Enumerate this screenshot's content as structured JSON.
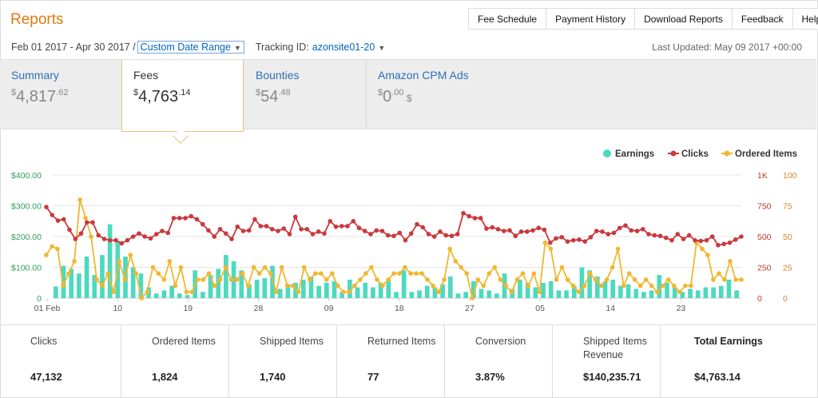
{
  "header": {
    "title": "Reports",
    "nav": [
      "Fee Schedule",
      "Payment History",
      "Download Reports",
      "Feedback",
      "Help"
    ]
  },
  "filters": {
    "date_range": "Feb 01 2017 - Apr 30 2017 /",
    "range_select": "Custom Date Range",
    "tracking_label": "Tracking ID:",
    "tracking_value": "azonsite01-20",
    "last_updated": "Last Updated: May 09 2017 +00:00"
  },
  "tabs": [
    {
      "label": "Summary",
      "currency": "$",
      "amount": "4,817",
      "cents": ".62",
      "suffix": ""
    },
    {
      "label": "Fees",
      "currency": "$",
      "amount": "4,763",
      "cents": ".14",
      "suffix": ""
    },
    {
      "label": "Bounties",
      "currency": "$",
      "amount": "54",
      "cents": ".48",
      "suffix": ""
    },
    {
      "label": "Amazon CPM Ads",
      "currency": "$",
      "amount": "0",
      "cents": ".00",
      "suffix": " $"
    }
  ],
  "colors": {
    "earnings": "#4dd9c0",
    "clicks": "#c9393d",
    "ordered_items": "#f0b72f",
    "left_axis": "#2e9e60",
    "right_axis": "#c0392b"
  },
  "chart_data": {
    "type": "line",
    "legend": [
      "Earnings",
      "Clicks",
      "Ordered Items"
    ],
    "legend_position": "top-right",
    "x_tick_labels": [
      "01 Feb",
      "10",
      "19",
      "28",
      "09",
      "18",
      "27",
      "05",
      "14",
      "23"
    ],
    "x_tick_days": [
      0,
      9,
      18,
      27,
      36,
      45,
      54,
      63,
      72,
      81
    ],
    "y_left": {
      "ticks": [
        "0",
        "$100.00",
        "$200.00",
        "$300.00",
        "$400.00"
      ],
      "lim": [
        0,
        400
      ]
    },
    "y_right_clicks": {
      "ticks": [
        "0",
        "250",
        "500",
        "750",
        "1K"
      ],
      "lim": [
        0,
        1000
      ]
    },
    "y_right_items": {
      "ticks": [
        "0",
        "25",
        "50",
        "75",
        "100"
      ],
      "lim": [
        0,
        100
      ]
    },
    "grid": true,
    "series": [
      {
        "name": "Earnings",
        "type": "bar",
        "values": [
          38,
          105,
          95,
          80,
          135,
          75,
          140,
          240,
          185,
          135,
          100,
          80,
          35,
          15,
          25,
          40,
          15,
          10,
          90,
          20,
          75,
          95,
          140,
          120,
          90,
          45,
          60,
          65,
          105,
          30,
          45,
          50,
          60,
          70,
          40,
          50,
          55,
          20,
          60,
          35,
          50,
          35,
          50,
          60,
          20,
          90,
          20,
          25,
          40,
          35,
          45,
          70,
          15,
          20,
          55,
          30,
          25,
          15,
          80,
          30,
          60,
          50,
          35,
          50,
          55,
          25,
          25,
          40,
          100,
          90,
          70,
          55,
          60,
          40,
          45,
          30,
          20,
          25,
          75,
          50,
          35,
          20,
          30,
          25,
          35,
          35,
          40,
          60,
          25
        ]
      },
      {
        "name": "Clicks",
        "type": "line",
        "values": [
          740,
          675,
          630,
          640,
          555,
          480,
          525,
          615,
          615,
          510,
          480,
          470,
          470,
          445,
          470,
          500,
          525,
          500,
          485,
          520,
          545,
          530,
          650,
          650,
          650,
          665,
          640,
          600,
          550,
          500,
          560,
          525,
          480,
          580,
          545,
          550,
          640,
          585,
          585,
          560,
          545,
          565,
          520,
          660,
          560,
          560,
          520,
          540,
          525,
          625,
          580,
          585,
          585,
          625,
          570,
          545,
          520,
          550,
          545,
          510,
          505,
          530,
          470,
          525,
          600,
          575,
          520,
          500,
          540,
          510,
          505,
          520,
          690,
          665,
          650,
          650,
          565,
          575,
          560,
          545,
          550,
          505,
          540,
          540,
          550,
          570,
          555,
          450,
          485,
          495,
          460,
          470,
          475,
          460,
          495,
          545,
          540,
          520,
          530,
          570,
          590,
          550,
          545,
          560,
          520,
          510,
          505,
          490,
          470,
          520,
          480,
          510,
          470,
          465,
          470,
          500,
          430,
          440,
          450,
          475,
          500
        ]
      },
      {
        "name": "Ordered Items",
        "type": "line",
        "values": [
          35,
          42,
          40,
          10,
          20,
          30,
          80,
          65,
          50,
          15,
          10,
          20,
          5,
          30,
          15,
          35,
          20,
          0,
          5,
          25,
          20,
          15,
          30,
          10,
          25,
          5,
          5,
          15,
          15,
          20,
          10,
          15,
          25,
          15,
          15,
          20,
          10,
          25,
          20,
          25,
          20,
          5,
          25,
          10,
          10,
          5,
          25,
          15,
          20,
          20,
          15,
          20,
          10,
          5,
          5,
          10,
          15,
          20,
          25,
          15,
          10,
          15,
          20,
          20,
          25,
          20,
          20,
          20,
          15,
          10,
          5,
          15,
          40,
          30,
          25,
          20,
          0,
          15,
          10,
          20,
          25,
          15,
          10,
          5,
          15,
          20,
          10,
          20,
          5,
          45,
          40,
          15,
          25,
          15,
          10,
          5,
          10,
          20,
          15,
          10,
          15,
          25,
          40,
          10,
          20,
          15,
          10,
          15,
          10,
          5,
          10,
          15,
          10,
          5,
          10,
          10,
          45,
          40,
          35,
          15,
          20,
          15,
          30,
          15,
          15
        ]
      }
    ]
  },
  "stats": [
    {
      "label": "Clicks",
      "value": "47,132"
    },
    {
      "label": "Ordered Items",
      "value": "1,824"
    },
    {
      "label": "Shipped Items",
      "value": "1,740"
    },
    {
      "label": "Returned Items",
      "value": "77"
    },
    {
      "label": "Conversion",
      "value": "3.87%"
    },
    {
      "label": "Shipped Items Revenue",
      "value": "$140,235.71"
    },
    {
      "label": "Total Earnings",
      "value": "$4,763.14"
    }
  ]
}
